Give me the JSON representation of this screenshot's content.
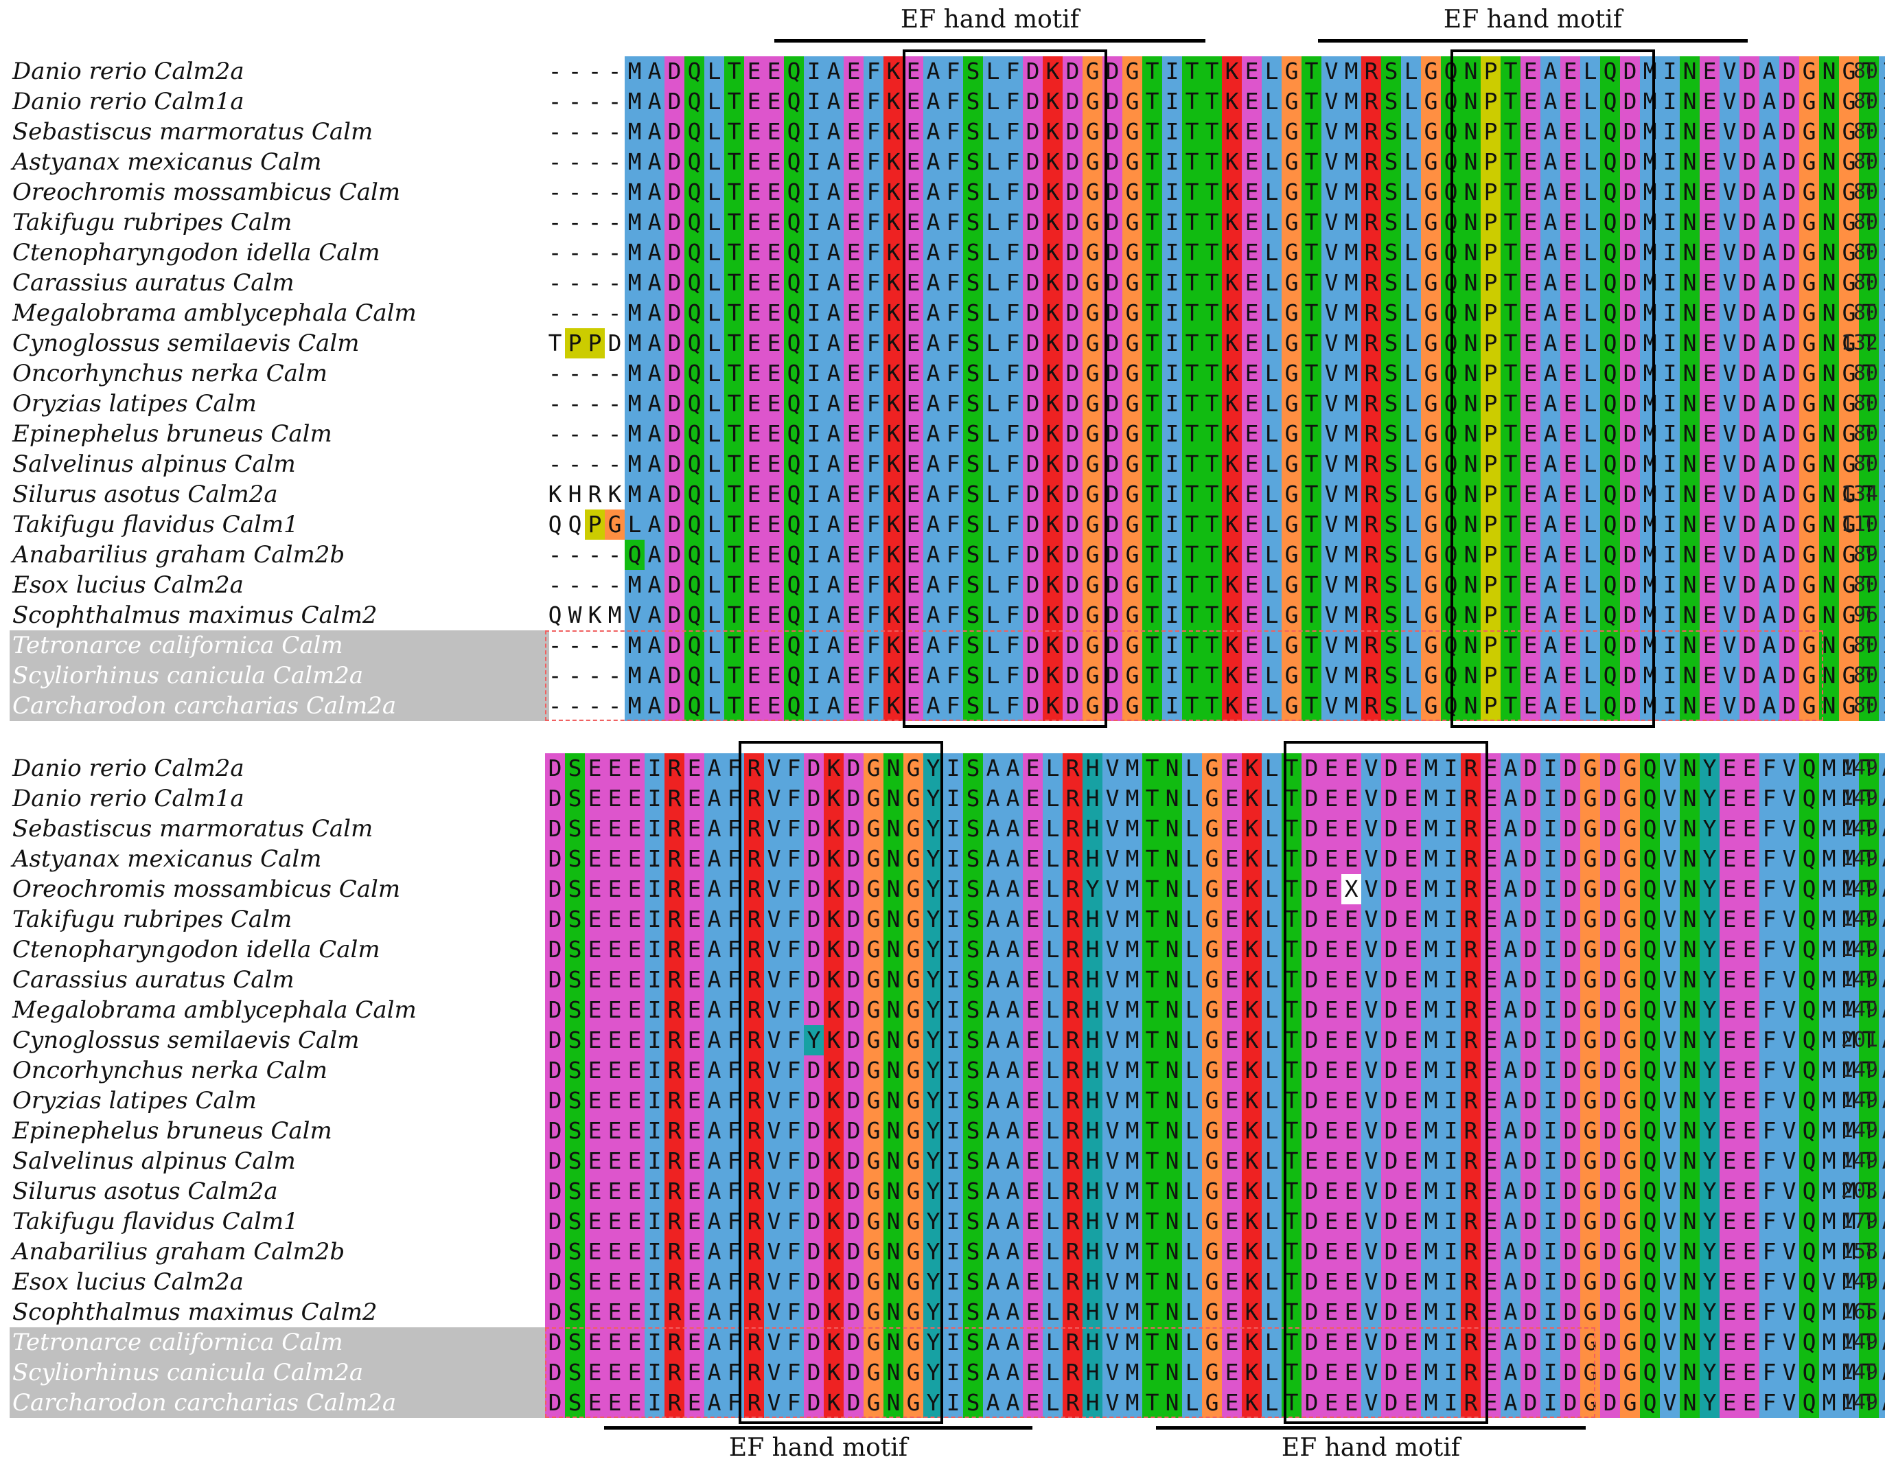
{
  "colors": {
    "hydrophobic": "#5aa6dc",
    "acidic": "#dd55cc",
    "basic": "#ee2222",
    "polar": "#11bb11",
    "glycine": "#ff8f42",
    "proline": "#cccc00",
    "aromatic": "#17a1a3",
    "unknown_highlight": "#ffffff",
    "shaded_label_bg": "#c0c0c0"
  },
  "motif_label": "EF hand motif",
  "block1": {
    "names": [
      "Danio rerio Calm2a",
      "Danio rerio Calm1a",
      "Sebastiscus marmoratus Calm",
      "Astyanax mexicanus Calm",
      "Oreochromis mossambicus Calm",
      "Takifugu rubripes Calm",
      "Ctenopharyngodon idella Calm",
      "Carassius auratus Calm",
      "Megalobrama amblycephala Calm",
      "Cynoglossus semilaevis Calm",
      "Oncorhynchus nerka Calm",
      "Oryzias latipes Calm",
      "Epinephelus bruneus Calm",
      "Salvelinus alpinus Calm",
      "Silurus asotus Calm2a",
      "Takifugu flavidus Calm1",
      "Anabarilius graham Calm2b",
      "Esox lucius Calm2a",
      "Scophthalmus maximus Calm2",
      "Tetronarce californica Calm",
      "Scyliorhinus canicula Calm2a",
      "Carcharodon carcharias Calm2a"
    ],
    "sequences": [
      "----MADQLTEEQIAEFKEAFSLFDKDGDGTITTKELGTVMRSLGQNPTEAELQDMINEVDADGNGTIDFPEFLTMMARKMKDT",
      "----MADQLTEEQIAEFKEAFSLFDKDGDGTITTKELGTVMRSLGQNPTEAELQDMINEVDADGNGTIDFPEFLTMMARKMKDT",
      "----MADQLTEEQIAEFKEAFSLFDKDGDGTITTKELGTVMRSLGQNPTEAELQDMINEVDADGNGTIDFPEFLTMMARKMKDT",
      "----MADQLTEEQIAEFKEAFSLFDKDGDGTITTKELGTVMRSLGQNPTEAELQDMINEVDADGNGTIDFPEFLTMMARKMKDT",
      "----MADQLTEEQIAEFKEAFSLFDKDGDGTITTKELGTVMRSLGQNPTEAELQDMINEVDADGNGTIDFPEFLTMMARKMKDT",
      "----MADQLTEEQIAEFKEAFSLFDKDGDGTITTKELGTVMRSLGQNPTEAELQDMINEVDADGNGTIDFPEFLTMMARKMKDT",
      "----MADQLTEEQIAEFKEAFSLFDKDGDGTITTKELGTVMRSLGQNPTEAELQDMINEVDADGNGTIDFPEFLTMMARKMKDT",
      "----MADQLTEEQIAEFKEAFSLFDKDGDGTITTKELGTVMRSLGQNPTEAELQDMINEVDADGNGTIDFPEFLTMMARKMKDT",
      "----MADQLTEEQIAEFKEAFSLFDKDGDGTITTKELGTVMRSLGQNPTEAELQDMINEVDADGNGTIDFPEFLTMMARKMKDT",
      "TPPDMADQLTEEQIAEFKEAFSLFDKDGDGTITTKELGTVMRSLGQNPTEAELQDMINEVDADGNGTIDFPEFLTMMARKMKDT",
      "----MADQLTEEQIAEFKEAFSLFDKDGDGTITTKELGTVMRSLGQNPTEAELQDMINEVDADGNGTIDFPEFLTMMARKMKDT",
      "----MADQLTEEQIAEFKEAFSLFDKDGDGTITTKELGTVMRSLGQNPTEAELQDMINEVDADGNGTIDFPEFLTMMARKMKDT",
      "----MADQLTEEQIAEFKEAFSLFDKDGDGTITTKELGTVMRSLGQNPTEAELQDMINEVDADGNGTIDFPEFLTMMARKMKDT",
      "----MADQLTEEQIAEFKEAFSLFDKDGDGTITTKELGTVMRSLGQNPTEAELQDMINEVDADGNGTIDFPEFLTMMARKMKDT",
      "KHRKMADQLTEEQIAEFKEAFSLFDKDGDGTITTKELGTVMRSLGQNPTEAELQDMINEVDADGNGTIDFPEFLTMMARKMKDT",
      "QQPGLADQLTEEQIAEFKEAFSLFDKDGDGTITTKELGTVMRSLGQNPTEAELQDMINEVDADGNGTIDFPEFLTMMARKMKDT",
      "----QADQLTEEQIAEFKEAFSLFDKDGDGTITTKELGTVMRSLGQNPTEAELQDMINEVDADGNGTIDFPEFLTMMARKMKDT",
      "----MADQLTEEQIAEFKEAFSLFDKDGDGTITTKELGTVMRSLGQNPTEAELQDMINEVDADGNGTIDFPEFLTMMARKMKDT",
      "QWKMVADQLTEEQIAEFKEAFSLFDKDGDGTITTKELGTVMRSLGQNPTEAELQDMINEVDADGNGTIDFPEFLTMMARKMKDT",
      "----MADQLTEEQIAEFKEAFSLFDKDGDGTITTKELGTVMRSLGQNPTEAELQDMINEVDADGNGTIDFPEFLTMMARKMKDT",
      "----MADQLTEEQIAEFKEAFSLFDKDGDGTITTKELGTVMRSLGQNPTEAELQDMINEVDADGNGTIDFPEFLTMMARKMKDT",
      "----MADQLTEEQIAEFKEAFSLFDKDGDGTITTKELGTVMRSLGQNPTEAELQDMINEVDADGNGTIDFPEFLTMMARKMKDT"
    ],
    "ends": [
      "80",
      "80",
      "80",
      "80",
      "80",
      "80",
      "80",
      "80",
      "80",
      "132",
      "80",
      "80",
      "80",
      "80",
      "134",
      "110",
      "89",
      "80",
      "96",
      "80",
      "80",
      "80"
    ]
  },
  "block2": {
    "names": [
      "Danio rerio Calm2a",
      "Danio rerio Calm1a",
      "Sebastiscus marmoratus Calm",
      "Astyanax mexicanus Calm",
      "Oreochromis mossambicus Calm",
      "Takifugu rubripes Calm",
      "Ctenopharyngodon idella Calm",
      "Carassius auratus Calm",
      "Megalobrama amblycephala Calm",
      "Cynoglossus semilaevis Calm",
      "Oncorhynchus nerka Calm",
      "Oryzias latipes Calm",
      "Epinephelus bruneus Calm",
      "Salvelinus alpinus Calm",
      "Silurus asotus Calm2a",
      "Takifugu flavidus Calm1",
      "Anabarilius graham Calm2b",
      "Esox lucius Calm2a",
      "Scophthalmus maximus Calm2",
      "Tetronarce californica Calm",
      "Scyliorhinus canicula Calm2a",
      "Carcharodon carcharias Calm2a"
    ],
    "sequences": [
      "DSEEEIREAFRVFDKDGNGYISAAELRHVMTNLGEKLTDEEVDEMIREADIDGDGQVNYEEFVQMMTAK",
      "DSEEEIREAFRVFDKDGNGYISAAELRHVMTNLGEKLTDEEVDEMIREADIDGDGQVNYEEFVQMMTAK",
      "DSEEEIREAFRVFDKDGNGYISAAELRHVMTNLGEKLTDEEVDEMIREADIDGDGQVNYEEFVQMMTAK",
      "DSEEEIREAFRVFDKDGNGYISAAELRHVMTNLGEKLTDEEVDEMIREADIDGDGQVNYEEFVQMMTAK",
      "DSEEEIREAFRVFDKDGNGYISAAELRYVMTNLGEKLTDEXVDEMIREADIDGDGQVNYEEFVQMMTAK",
      "DSEEEIREAFRVFDKDGNGYISAAELRHVMTNLGEKLTDEEVDEMIREADIDGDGQVNYEEFVQMMTAK",
      "DSEEEIREAFRVFDKDGNGYISAAELRHVMTNLGEKLTDEEVDEMIREADIDGDGQVNYEEFVQMMTAK",
      "DSEEEIREAFRVFDKDGNGYISAAELRHVMTNLGEKLTDEEVDEMIREADIDGDGQVNYEEFVQMMTAK",
      "DSEEEIREAFRVFDKDGNGYISAAELRHVMTNLGEKLTDEEVDEMIREADIDGDGQVNYEEFVQMMTAK",
      "DSEEEIREAFRVFYKDGNGYISAAELRHVMTNLGEKLTDEEVDEMIREADIDGDGQVNYEEFVQMMTAK",
      "DSEEEIREAFRVFDKDGNGYISAAELRHVMTNLGEKLTDEEVDEMIREADIDGDGQVNYEEFVQMMTAK",
      "DSEEEIREAFRVFDKDGNGYISAAELRHVMTNLGEKLTDEEVDEMIREADIDGDGQVNYEEFVQMMTAK",
      "DSEEEIREAFRVFDKDGNGYISAAELRHVMTNLGEKLTDEEVDEMIREADIDGDGQVNYEEFVQMMTAK",
      "DSEEEIREAFRVFDKDGNGYISAAELRHVMTNLGEKLTEEEVDEMIREADIDGDGQVNYEEFVQMMTAK",
      "DSEEEIREAFRVFDKDGNGYISAAELRHVMTNLGEKLTDEEVDEMIREADIDGDGQVNYEEFVQMMTAK",
      "DSEEEIREAFRVFDKDGNGYISAAELRHVMTNLGEKLTDEEVDEMIREADIDGDGQVNYEEFVQMMTAK",
      "DSEEEIREAFRVFDKDGNGYISAAELRHVMTNLGEKLTDEEVDEMIREADIDGDGQVNYEEFVQMMTAK",
      "DSEEEIREAFRVFDKDGNGYISAAELRHVMTNLGEKLTDEEVDEMIREADIDGDGQVNYEEFVQVMTAK",
      "DSEEEIREAFRVFDKDGNGYISAAELRHVMTNLGEKLTDEEVDEMIREADIDGDGQVNYEEFVQMMTAK",
      "DSEEEIREAFRVFDKDGNGYISAAELRHVMTNLGEKLTDEEVDEMIREADIDGDGQVNYEEFVQMMTAK",
      "DSEEEIREAFRVFDKDGNGYISAAELRHVMTNLGEKLTDEEVDEMIREADIDGDGQVNYEEFVQMMTAK",
      "DSEEEIREAFRVFDKDGNGYISAAELRHVMTNLGEKLTDEEVDEMIREADIDGDGQVNYEEFVQMMTAK"
    ],
    "ends": [
      "149",
      "149",
      "149",
      "149",
      "149",
      "149",
      "149",
      "149",
      "149",
      "201",
      "149",
      "149",
      "149",
      "149",
      "203",
      "179",
      "158",
      "149",
      "165",
      "149",
      "149",
      "149"
    ]
  }
}
